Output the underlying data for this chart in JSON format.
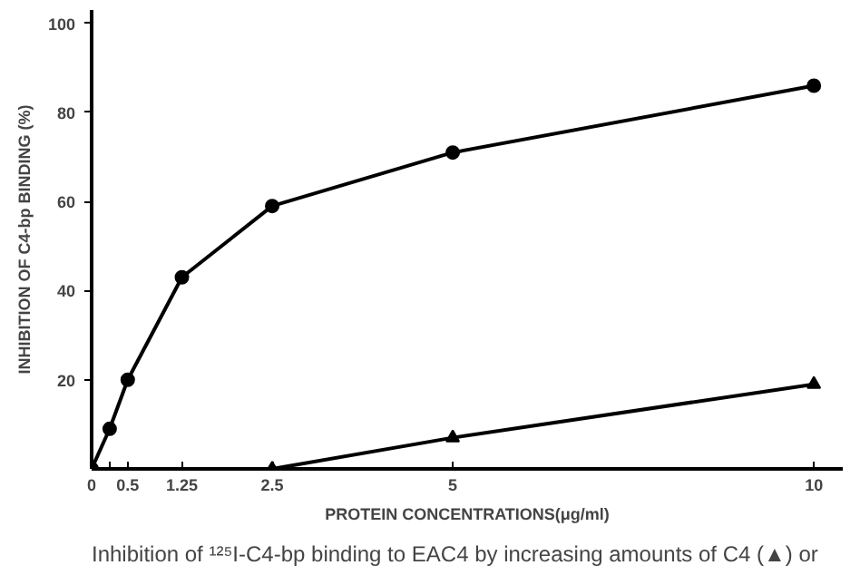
{
  "chart_data": {
    "type": "line",
    "xlabel": "PROTEIN CONCENTRATIONS(μg/ml)",
    "ylabel": "INHIBITION OF C4-bp BINDING (%)",
    "xlim": [
      0,
      10.4
    ],
    "ylim": [
      0,
      103
    ],
    "xticks": [
      0,
      {
        "value": 0.25,
        "label": null
      },
      0.5,
      1.25,
      2.5,
      5,
      10
    ],
    "yticks": [
      20,
      40,
      60,
      80,
      100
    ],
    "grid": false,
    "line_style": "solid",
    "series": [
      {
        "color": "#000000",
        "marker": "circle",
        "x": [
          0,
          0.25,
          0.5,
          1.25,
          2.5,
          5,
          10
        ],
        "values": [
          0,
          9,
          20,
          43,
          59,
          71,
          86
        ]
      },
      {
        "color": "#000000",
        "marker": "triangle",
        "x": [
          2.5,
          5,
          10
        ],
        "values": [
          0,
          7,
          19
        ]
      }
    ],
    "annotations": [
      "Inhibition of ¹²⁵I-C4-bp binding to EAC4 by increasing amounts of C4 (▲) or"
    ]
  }
}
